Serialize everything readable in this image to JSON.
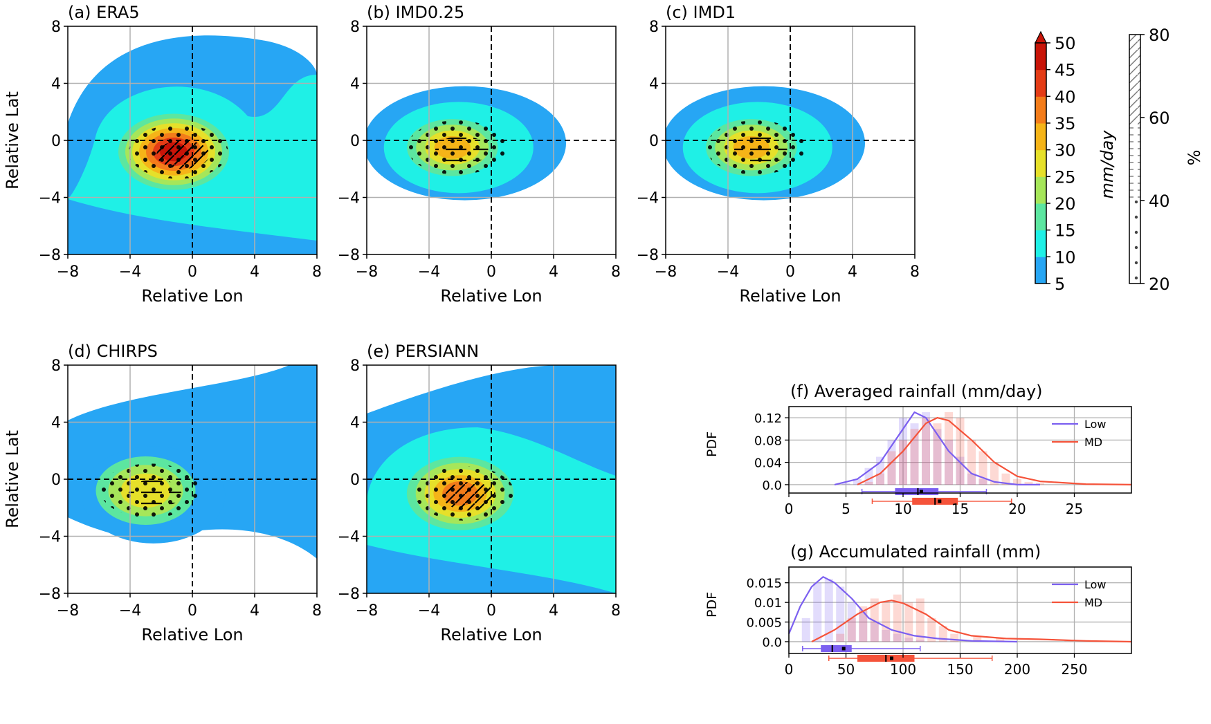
{
  "colors": {
    "levels": [
      "#27a6f4",
      "#1ff0e6",
      "#5ce6a0",
      "#a6e65a",
      "#e6e02a",
      "#f5b418",
      "#f37c1a",
      "#e43c16",
      "#c81408"
    ],
    "low": "#7b5ff0",
    "md": "#f5533a",
    "grid": "#b0b0b0"
  },
  "chart_data": [
    {
      "panel": "a",
      "type": "heatmap",
      "title": "(a) ERA5",
      "xlabel": "Relative Lon",
      "ylabel": "Relative Lat",
      "xlim": [
        -8,
        8
      ],
      "ylim": [
        -8,
        8
      ],
      "xticks": [
        "−8",
        "−4",
        "0",
        "4",
        "8"
      ],
      "yticks": [
        "8",
        "4",
        "0",
        "−4",
        "−8"
      ],
      "center": [
        -1.2,
        -0.8
      ],
      "peak_mm_day": 50,
      "regions": {
        "outer": "full-domain",
        "inner": "centered-on-storm"
      },
      "stipple": "dots",
      "hatch": "slashes-and-dashes"
    },
    {
      "panel": "b",
      "type": "heatmap",
      "title": "(b) IMD0.25",
      "xlabel": "Relative Lon",
      "ylabel": "",
      "xlim": [
        -8,
        8
      ],
      "ylim": [
        -8,
        8
      ],
      "xticks": [
        "−8",
        "−4",
        "0",
        "4",
        "8"
      ],
      "yticks": [
        "8",
        "4",
        "0",
        "−4",
        "−8"
      ],
      "center": [
        -2.5,
        -0.5
      ],
      "peak_mm_day": 30,
      "stipple": "dots",
      "hatch": "dashes"
    },
    {
      "panel": "c",
      "type": "heatmap",
      "title": "(c) IMD1",
      "xlabel": "Relative Lon",
      "ylabel": "",
      "xlim": [
        -8,
        8
      ],
      "ylim": [
        -8,
        8
      ],
      "xticks": [
        "−8",
        "−4",
        "0",
        "4",
        "8"
      ],
      "yticks": [
        "8",
        "4",
        "0",
        "−4",
        "−8"
      ],
      "center": [
        -2.5,
        -0.5
      ],
      "peak_mm_day": 30,
      "stipple": "dots",
      "hatch": "dashes"
    },
    {
      "panel": "d",
      "type": "heatmap",
      "title": "(d) CHIRPS",
      "xlabel": "Relative Lon",
      "ylabel": "Relative Lat",
      "xlim": [
        -8,
        8
      ],
      "ylim": [
        -8,
        8
      ],
      "xticks": [
        "−8",
        "−4",
        "0",
        "4",
        "8"
      ],
      "yticks": [
        "8",
        "4",
        "0",
        "−4",
        "−8"
      ],
      "center": [
        -3,
        -0.8
      ],
      "peak_mm_day": 25,
      "stipple": "dots",
      "hatch": "dashes"
    },
    {
      "panel": "e",
      "type": "heatmap",
      "title": "(e) PERSIANN",
      "xlabel": "Relative Lon",
      "ylabel": "",
      "xlim": [
        -8,
        8
      ],
      "ylim": [
        -8,
        8
      ],
      "xticks": [
        "−8",
        "−4",
        "0",
        "4",
        "8"
      ],
      "yticks": [
        "8",
        "4",
        "0",
        "−4",
        "−8"
      ],
      "center": [
        -2,
        -1
      ],
      "peak_mm_day": 35,
      "stipple": "dots",
      "hatch": "slashes-and-dashes"
    },
    {
      "panel": "f",
      "type": "bar",
      "title": "(f) Averaged rainfall (mm/day)",
      "xlabel": "",
      "ylabel": "PDF",
      "xlim": [
        0,
        30
      ],
      "ylim": [
        -0.015,
        0.14
      ],
      "xticks": [
        "0",
        "5",
        "10",
        "15",
        "20",
        "25"
      ],
      "yticks": [
        "0.0",
        "0.04",
        "0.08",
        "0.12"
      ],
      "legend": "top-right",
      "series": [
        {
          "name": "Low",
          "x": [
            4,
            6,
            8,
            10,
            11,
            12,
            13,
            14,
            16,
            18,
            20,
            22
          ],
          "y": [
            0.0,
            0.01,
            0.04,
            0.1,
            0.13,
            0.12,
            0.09,
            0.06,
            0.02,
            0.005,
            0.0,
            0.0
          ],
          "bars_x": [
            5,
            6,
            7,
            8,
            9,
            10,
            11,
            12,
            13,
            14,
            15,
            16,
            17
          ],
          "bars_y": [
            0.003,
            0.01,
            0.03,
            0.05,
            0.08,
            0.12,
            0.11,
            0.13,
            0.1,
            0.08,
            0.05,
            0.02,
            0.01
          ],
          "box": {
            "min": 6.4,
            "q1": 9.3,
            "median": 11.3,
            "mean": 11.6,
            "q3": 13.1,
            "max": 17.3
          }
        },
        {
          "name": "MD",
          "x": [
            6,
            8,
            10,
            12,
            13,
            14,
            16,
            18,
            20,
            22,
            26,
            30
          ],
          "y": [
            0.0,
            0.02,
            0.06,
            0.11,
            0.12,
            0.115,
            0.08,
            0.04,
            0.015,
            0.006,
            0.001,
            0.0
          ],
          "bars_x": [
            7,
            8,
            9,
            10,
            11,
            12,
            13,
            14,
            15,
            16,
            17,
            18,
            19,
            20,
            21,
            22
          ],
          "bars_y": [
            0.005,
            0.02,
            0.06,
            0.08,
            0.1,
            0.12,
            0.11,
            0.13,
            0.12,
            0.08,
            0.06,
            0.04,
            0.02,
            0.01,
            0.005,
            0.003
          ],
          "box": {
            "min": 7.3,
            "q1": 10.8,
            "median": 12.8,
            "mean": 13.2,
            "q3": 14.8,
            "max": 19.5
          }
        }
      ]
    },
    {
      "panel": "g",
      "type": "bar",
      "title": "(g) Accumulated rainfall (mm)",
      "xlabel": "",
      "ylabel": "PDF",
      "xlim": [
        0,
        300
      ],
      "ylim": [
        -0.003,
        0.019
      ],
      "xticks": [
        "0",
        "50",
        "100",
        "150",
        "200",
        "250"
      ],
      "yticks": [
        "0.0",
        "0.005",
        "0.01",
        "0.015"
      ],
      "legend": "top-right",
      "series": [
        {
          "name": "Low",
          "x": [
            0,
            10,
            20,
            30,
            40,
            55,
            70,
            90,
            110,
            130,
            160,
            200
          ],
          "y": [
            0.002,
            0.009,
            0.014,
            0.0165,
            0.015,
            0.011,
            0.006,
            0.003,
            0.0015,
            0.0008,
            0.0002,
            0.0
          ],
          "bars_x": [
            15,
            25,
            35,
            45,
            55,
            65,
            75,
            85,
            95,
            105,
            115
          ],
          "bars_y": [
            0.006,
            0.015,
            0.016,
            0.014,
            0.01,
            0.008,
            0.005,
            0.003,
            0.002,
            0.001,
            0.0005
          ],
          "box": {
            "min": 12,
            "q1": 28,
            "median": 38,
            "mean": 48,
            "q3": 55,
            "max": 115
          }
        },
        {
          "name": "MD",
          "x": [
            20,
            40,
            60,
            80,
            90,
            100,
            120,
            140,
            160,
            190,
            220,
            260,
            300
          ],
          "y": [
            0.0,
            0.003,
            0.007,
            0.01,
            0.0105,
            0.0098,
            0.007,
            0.003,
            0.0015,
            0.0008,
            0.0006,
            0.0002,
            0.0
          ],
          "bars_x": [
            45,
            55,
            65,
            75,
            85,
            95,
            105,
            115,
            125,
            135,
            145,
            165,
            185,
            245
          ],
          "bars_y": [
            0.002,
            0.006,
            0.009,
            0.011,
            0.01,
            0.012,
            0.01,
            0.011,
            0.006,
            0.004,
            0.002,
            0.0015,
            0.001,
            0.0005
          ],
          "box": {
            "min": 35,
            "q1": 60,
            "median": 85,
            "mean": 90,
            "q3": 110,
            "max": 178
          }
        }
      ]
    }
  ],
  "colorbar_rain": {
    "ticks": [
      "5",
      "10",
      "15",
      "20",
      "25",
      "30",
      "35",
      "40",
      "45",
      "50"
    ],
    "label": "mm/day"
  },
  "colorbar_pct": {
    "ticks": [
      "20",
      "40",
      "60",
      "80"
    ],
    "label": "%"
  }
}
